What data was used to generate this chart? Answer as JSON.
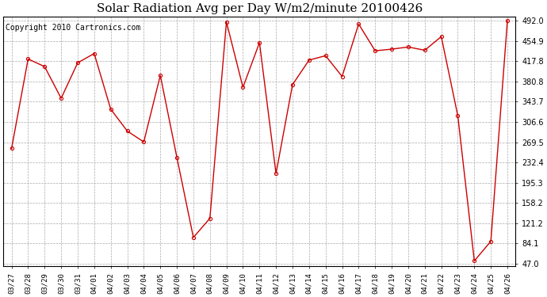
{
  "title": "Solar Radiation Avg per Day W/m2/minute 20100426",
  "copyright": "Copyright 2010 Cartronics.com",
  "labels": [
    "03/27",
    "03/28",
    "03/29",
    "03/30",
    "03/31",
    "04/01",
    "04/02",
    "04/03",
    "04/04",
    "04/05",
    "04/06",
    "04/07",
    "04/08",
    "04/09",
    "04/10",
    "04/11",
    "04/12",
    "04/13",
    "04/14",
    "04/15",
    "04/16",
    "04/17",
    "04/18",
    "04/19",
    "04/20",
    "04/21",
    "04/22",
    "04/23",
    "04/24",
    "04/25",
    "04/26"
  ],
  "values": [
    258,
    422,
    408,
    350,
    415,
    432,
    330,
    290,
    270,
    392,
    242,
    95,
    130,
    490,
    370,
    452,
    212,
    375,
    420,
    428,
    390,
    486,
    437,
    440,
    444,
    438,
    463,
    318,
    52,
    88,
    492
  ],
  "y_ticks": [
    47.0,
    84.1,
    121.2,
    158.2,
    195.3,
    232.4,
    269.5,
    306.6,
    343.7,
    380.8,
    417.8,
    454.9,
    492.0
  ],
  "ymin": 47.0,
  "ymax": 492.0,
  "line_color": "#cc0000",
  "marker_size": 3,
  "bg_color": "#ffffff",
  "grid_color": "#aaaaaa",
  "title_fontsize": 11,
  "copyright_fontsize": 7,
  "tick_fontsize": 7,
  "xtick_fontsize": 6.5
}
